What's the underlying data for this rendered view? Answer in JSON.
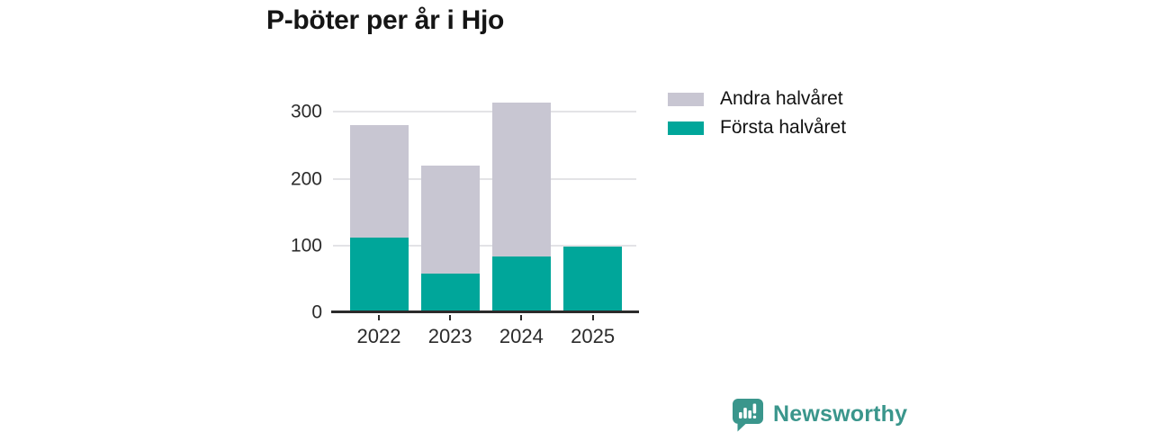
{
  "title": "P-böter per år i Hjo",
  "chart_data": {
    "type": "bar",
    "stacked": true,
    "title": "P-böter per år i Hjo",
    "categories": [
      "2022",
      "2023",
      "2024",
      "2025"
    ],
    "series": [
      {
        "name": "Första halvåret",
        "color": "#00A69A",
        "values": [
          112,
          58,
          84,
          99
        ]
      },
      {
        "name": "Andra halvåret",
        "color": "#C8C6D2",
        "values": [
          168,
          162,
          230,
          0
        ]
      }
    ],
    "totals": [
      280,
      220,
      314,
      99
    ],
    "xlabel": "",
    "ylabel": "",
    "yticks": [
      0,
      100,
      200,
      300
    ],
    "ylim": [
      0,
      330
    ],
    "grid": true,
    "legend_position": "right-of-plot-top"
  },
  "legend": {
    "items": [
      {
        "label": "Andra halvåret",
        "color": "#C8C6D2"
      },
      {
        "label": "Första halvåret",
        "color": "#00A69A"
      }
    ]
  },
  "branding": {
    "logo_text": "Newsworthy",
    "logo_color": "#3A968C",
    "logo_icon": "bar-chart-speech-bubble-icon"
  }
}
